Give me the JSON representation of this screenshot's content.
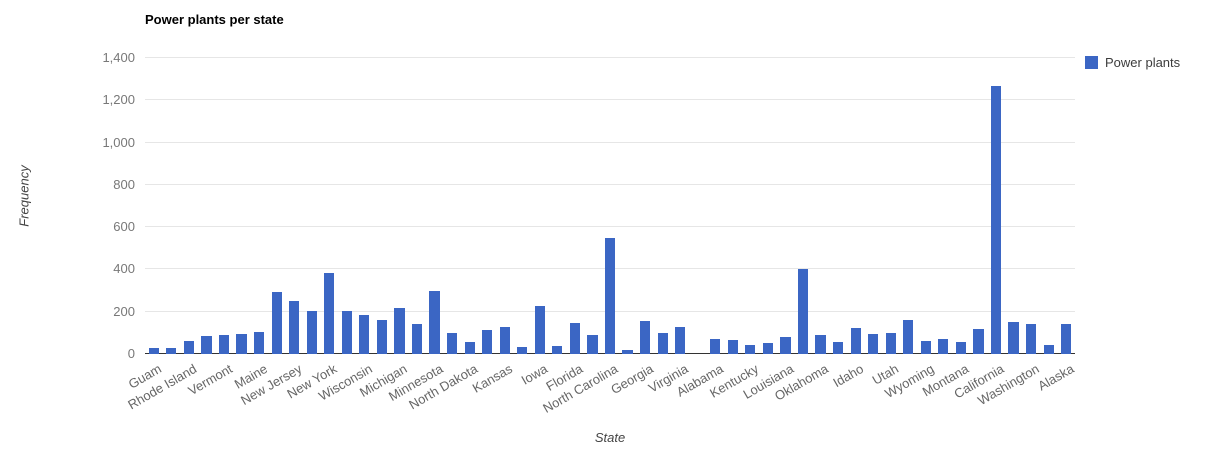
{
  "chart_data": {
    "type": "bar",
    "title": "Power plants per state",
    "xlabel": "State",
    "ylabel": "Frequency",
    "legend": [
      "Power plants"
    ],
    "legend_position": "top-right",
    "grid": true,
    "bar_color": "#3b66c4",
    "ylim": [
      0,
      1400
    ],
    "yticks": [
      0,
      200,
      400,
      600,
      800,
      1000,
      1200,
      1400
    ],
    "ytick_labels": [
      "0",
      "200",
      "400",
      "600",
      "800",
      "1,000",
      "1,200",
      "1,400"
    ],
    "categories": [
      "Guam",
      "",
      "Rhode Island",
      "",
      "Vermont",
      "",
      "Maine",
      "",
      "New Jersey",
      "",
      "New York",
      "",
      "Wisconsin",
      "",
      "Michigan",
      "",
      "Minnesota",
      "",
      "North Dakota",
      "",
      "Kansas",
      "",
      "Iowa",
      "",
      "Florida",
      "",
      "North Carolina",
      "",
      "Georgia",
      "",
      "Virginia",
      "",
      "Alabama",
      "",
      "Kentucky",
      "",
      "Louisiana",
      "",
      "Oklahoma",
      "",
      "Idaho",
      "",
      "Utah",
      "",
      "Wyoming",
      "",
      "Montana",
      "",
      "California",
      "",
      "Washington",
      "",
      "Alaska"
    ],
    "values": [
      30,
      30,
      60,
      85,
      90,
      95,
      105,
      295,
      250,
      205,
      385,
      205,
      185,
      160,
      220,
      140,
      300,
      100,
      55,
      115,
      130,
      35,
      225,
      40,
      145,
      90,
      550,
      20,
      155,
      100,
      130,
      0,
      70,
      65,
      45,
      50,
      80,
      400,
      90,
      55,
      125,
      95,
      100,
      160,
      60,
      70,
      55,
      120,
      1270,
      150,
      140,
      45,
      140
    ]
  }
}
